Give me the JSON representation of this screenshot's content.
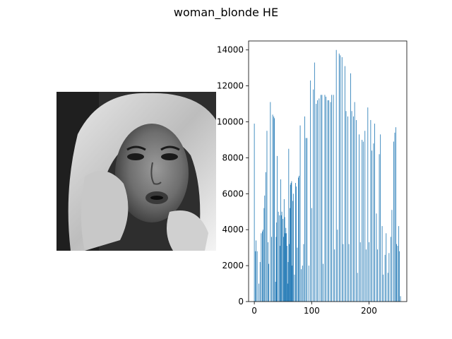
{
  "figure": {
    "title": "woman_blonde HE"
  },
  "image_panel": {
    "subject": "woman-portrait-grayscale"
  },
  "chart_data": {
    "type": "bar",
    "title": "",
    "xlabel": "",
    "ylabel": "",
    "xlim": [
      -10,
      266
    ],
    "ylim": [
      0,
      14500
    ],
    "x_ticks": [
      0,
      100,
      200
    ],
    "y_ticks": [
      0,
      2000,
      4000,
      6000,
      8000,
      10000,
      12000,
      14000
    ],
    "bar_color": "#1f77b4",
    "x": [
      0,
      2,
      3,
      5,
      8,
      10,
      12,
      14,
      15,
      17,
      18,
      20,
      22,
      24,
      25,
      28,
      30,
      32,
      34,
      35,
      37,
      38,
      39,
      40,
      42,
      44,
      45,
      46,
      47,
      48,
      50,
      51,
      52,
      53,
      54,
      55,
      56,
      57,
      58,
      59,
      60,
      61,
      62,
      63,
      64,
      65,
      66,
      67,
      68,
      70,
      72,
      73,
      75,
      77,
      78,
      80,
      82,
      84,
      86,
      88,
      90,
      92,
      95,
      98,
      100,
      103,
      105,
      108,
      110,
      113,
      116,
      118,
      120,
      123,
      125,
      128,
      130,
      133,
      135,
      138,
      140,
      143,
      145,
      148,
      150,
      153,
      155,
      158,
      160,
      163,
      165,
      168,
      170,
      173,
      175,
      178,
      180,
      183,
      185,
      188,
      190,
      193,
      195,
      198,
      200,
      203,
      205,
      208,
      210,
      213,
      215,
      218,
      220,
      223,
      225,
      228,
      230,
      233,
      235,
      238,
      240,
      243,
      245,
      247,
      248,
      250,
      252,
      253,
      255
    ],
    "values": [
      9900,
      2800,
      3400,
      2800,
      1000,
      2200,
      3800,
      3900,
      4000,
      5200,
      5900,
      7200,
      9500,
      3300,
      2100,
      11100,
      3600,
      10400,
      10300,
      10200,
      1100,
      3600,
      4400,
      8100,
      5000,
      4800,
      3100,
      6800,
      4800,
      5000,
      4600,
      3600,
      5700,
      4700,
      3800,
      4100,
      3800,
      3100,
      1000,
      2200,
      8500,
      3200,
      5200,
      6500,
      6600,
      6700,
      2000,
      5600,
      6000,
      1500,
      6600,
      6400,
      3000,
      6900,
      7000,
      9800,
      1800,
      2000,
      3200,
      10300,
      9100,
      9100,
      2000,
      12300,
      5200,
      11800,
      13300,
      11000,
      11200,
      11300,
      11500,
      11500,
      2100,
      11500,
      11400,
      11200,
      11200,
      11100,
      11500,
      11500,
      2900,
      14000,
      4000,
      13800,
      13700,
      13600,
      3200,
      13100,
      10600,
      10300,
      3200,
      12700,
      10600,
      10300,
      11100,
      10100,
      1600,
      9300,
      3300,
      9000,
      8900,
      9500,
      2900,
      10800,
      3300,
      10100,
      8400,
      8800,
      9900,
      4900,
      2900,
      8200,
      9300,
      4200,
      1500,
      2600,
      3800,
      1600,
      2700,
      3600,
      5100,
      8900,
      9400,
      9700,
      3200,
      3100,
      4200,
      2800,
      300
    ]
  }
}
